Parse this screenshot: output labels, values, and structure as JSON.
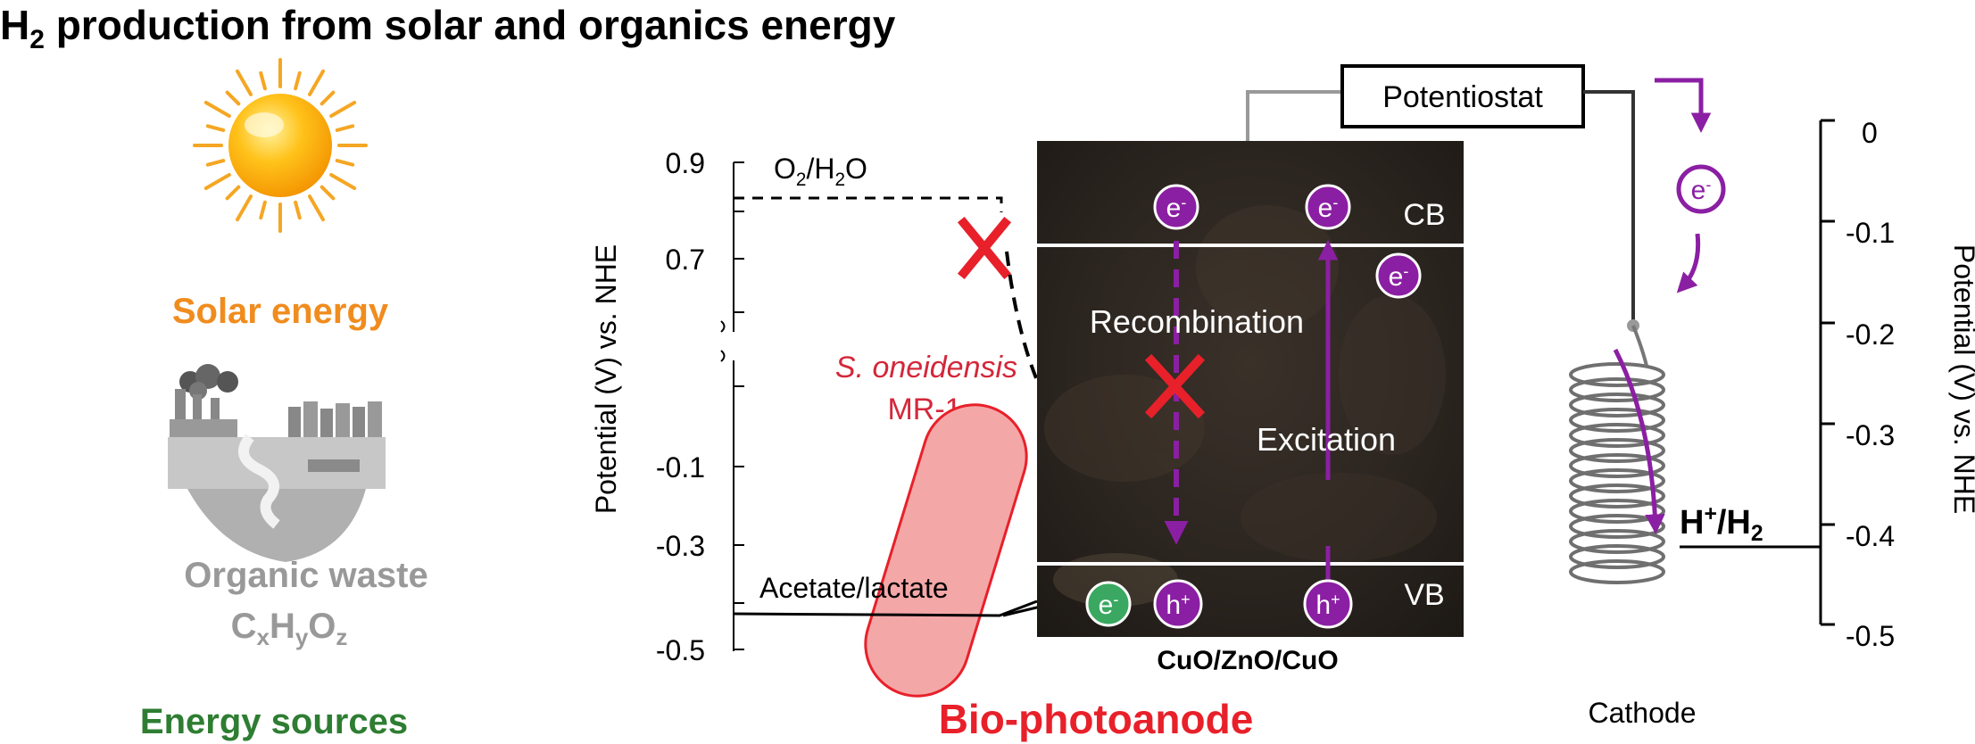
{
  "title": {
    "main": "H",
    "sub": "2",
    "rest": " production from solar and organics energy"
  },
  "sources": {
    "solar_label": "Solar energy",
    "waste_label": "Organic waste",
    "formula": [
      {
        "t": "C",
        "s": false
      },
      {
        "t": "x",
        "s": true
      },
      {
        "t": "H",
        "s": false
      },
      {
        "t": "y",
        "s": true
      },
      {
        "t": "O",
        "s": false
      },
      {
        "t": "z",
        "s": true
      }
    ],
    "section_label": "Energy sources"
  },
  "anode": {
    "section_label": "Bio-photoanode",
    "y_axis_label": "Potential (V) vs. NHE",
    "ticks": [
      "0.9",
      "0.7",
      "-0.1",
      "-0.3",
      "-0.5"
    ],
    "o2_label": [
      {
        "t": "O",
        "s": false
      },
      {
        "t": "2",
        "s": true
      },
      {
        "t": "/H",
        "s": false
      },
      {
        "t": "2",
        "s": true
      },
      {
        "t": "O",
        "s": false
      }
    ],
    "bacteria_name": "S. oneidensis",
    "bacteria_strain": "MR-1",
    "substrate_label": "Acetate/lactate",
    "material_label": "CuO/ZnO/CuO",
    "cb_label": "CB",
    "vb_label": "VB",
    "recombination_label": "Recombination",
    "excitation_label": "Excitation",
    "electron": "e",
    "hole": "h"
  },
  "circuit": {
    "potentiostat_label": "Potentiostat",
    "electron": "e"
  },
  "cathode": {
    "label": "Cathode",
    "couple": [
      {
        "t": "H",
        "s": false
      },
      {
        "t": "+",
        "s": true
      },
      {
        "t": "/H",
        "s": false
      },
      {
        "t": "2",
        "s": true,
        "sub": true
      }
    ],
    "y_axis_label": "Potential (V) vs. NHE",
    "ticks": [
      "0",
      "-0.1",
      "-0.2",
      "-0.3",
      "-0.4",
      "-0.5"
    ]
  },
  "colors": {
    "purple": "#8b1fa3",
    "red": "#e8202a",
    "orange": "#f08c1e",
    "green": "#2e7d32",
    "gray": "#999999",
    "panel": "#2b2520"
  }
}
